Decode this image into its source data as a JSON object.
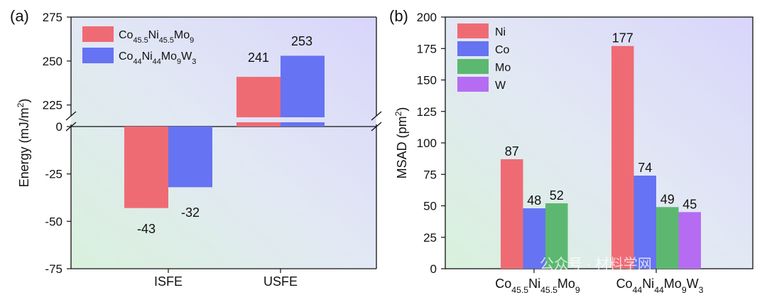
{
  "watermark": "公众号 · 材料学网",
  "chart_data": [
    {
      "type": "bar",
      "panel_label": "(a)",
      "categories": [
        "ISFE",
        "USFE"
      ],
      "series": [
        {
          "name": "Co45.5Ni45.5Mo9",
          "name_parts": [
            [
              "Co",
              ""
            ],
            [
              "45.5",
              "sub"
            ],
            [
              "Ni",
              ""
            ],
            [
              "45.5",
              "sub"
            ],
            [
              "Mo",
              ""
            ],
            [
              "9",
              "sub"
            ]
          ],
          "color": "#ef6b74",
          "values": [
            -43,
            241
          ]
        },
        {
          "name": "Co44Ni44Mo9W3",
          "name_parts": [
            [
              "Co",
              ""
            ],
            [
              "44",
              "sub"
            ],
            [
              "Ni",
              ""
            ],
            [
              "44",
              "sub"
            ],
            [
              "Mo",
              ""
            ],
            [
              "9",
              "sub"
            ],
            [
              "W",
              ""
            ],
            [
              "3",
              "sub"
            ]
          ],
          "color": "#6673f2",
          "values": [
            -32,
            253
          ]
        }
      ],
      "data_labels": [
        "-43",
        "-32",
        "241",
        "253"
      ],
      "ylabel": "Energy (mJ/m2)",
      "ylabel_parts": [
        [
          "Energy (mJ/m",
          ""
        ],
        [
          "2",
          "sup"
        ],
        [
          ")",
          ""
        ]
      ],
      "yticks_lower": [
        "-75",
        "-50",
        "-25",
        "0"
      ],
      "yticks_upper": [
        "225",
        "250",
        "275"
      ],
      "ylim_lower": [
        -75,
        0
      ],
      "ylim_upper": [
        215,
        275
      ],
      "broken_axis": true,
      "legend_position": "top-left",
      "grid": false
    },
    {
      "type": "bar",
      "panel_label": "(b)",
      "categories": [
        "Co45.5Ni45.5Mo9",
        "Co44Ni44Mo9W3"
      ],
      "category_parts": [
        [
          [
            "Co",
            ""
          ],
          [
            "45.5",
            "sub"
          ],
          [
            "Ni",
            ""
          ],
          [
            "45.5",
            "sub"
          ],
          [
            "Mo",
            ""
          ],
          [
            "9",
            "sub"
          ]
        ],
        [
          [
            "Co",
            ""
          ],
          [
            "44",
            "sub"
          ],
          [
            "Ni",
            ""
          ],
          [
            "44",
            "sub"
          ],
          [
            "Mo",
            ""
          ],
          [
            "9",
            "sub"
          ],
          [
            "W",
            ""
          ],
          [
            "3",
            "sub"
          ]
        ]
      ],
      "series": [
        {
          "name": "Ni",
          "color": "#ef6b74",
          "values": [
            87,
            177
          ]
        },
        {
          "name": "Co",
          "color": "#6673f2",
          "values": [
            48,
            74
          ]
        },
        {
          "name": "Mo",
          "color": "#5cb870",
          "values": [
            52,
            49
          ]
        },
        {
          "name": "W",
          "color": "#b56cf2",
          "values": [
            null,
            45
          ]
        }
      ],
      "ylabel": "MSAD (pm2)",
      "ylabel_parts": [
        [
          "MSAD (pm",
          ""
        ],
        [
          "2",
          "sup"
        ],
        [
          ")",
          ""
        ]
      ],
      "yticks": [
        "0",
        "25",
        "50",
        "75",
        "100",
        "125",
        "150",
        "175",
        "200"
      ],
      "ylim": [
        0,
        200
      ],
      "legend_position": "top-left",
      "grid": false
    }
  ]
}
